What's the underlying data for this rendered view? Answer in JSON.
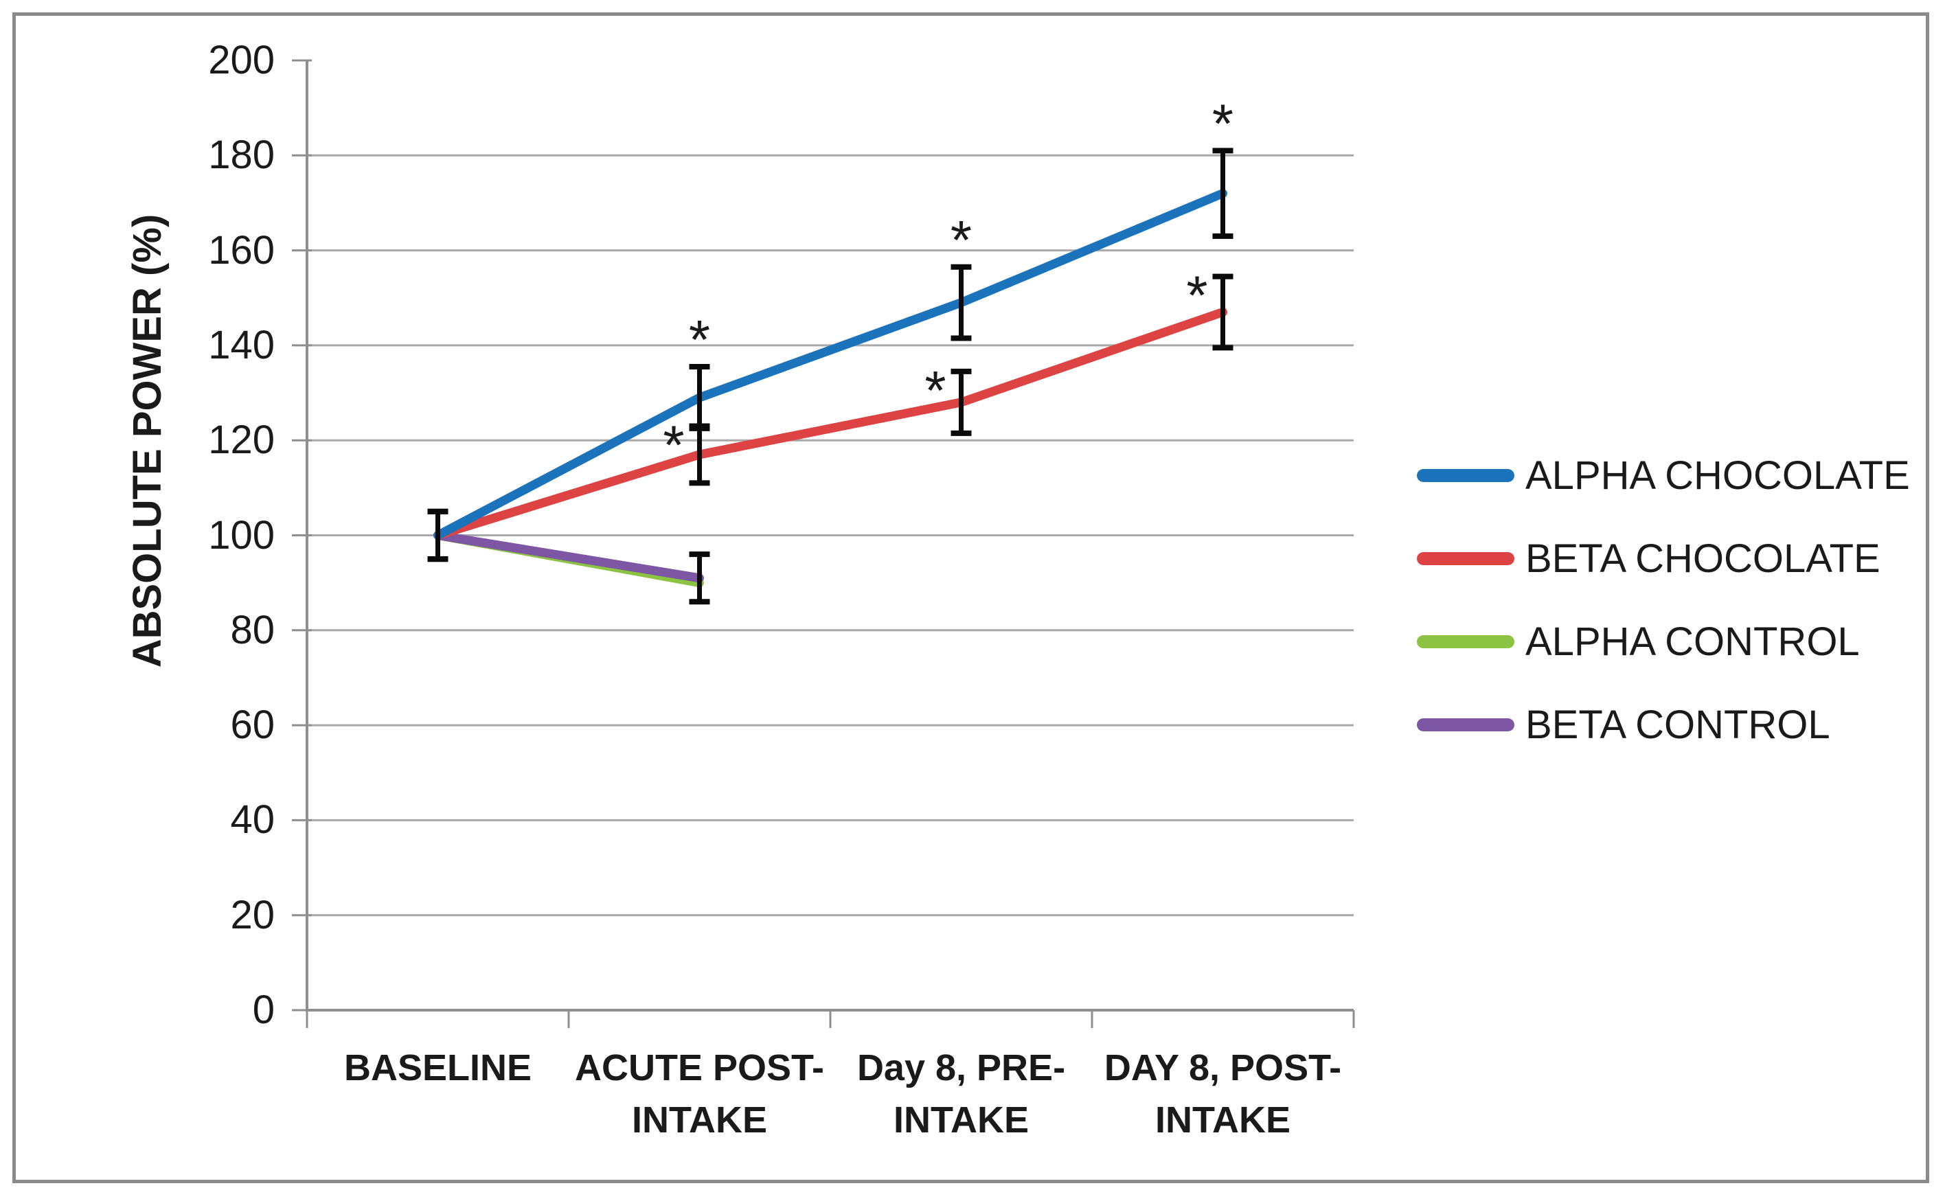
{
  "chart_data": {
    "type": "line",
    "title": "",
    "xlabel": "",
    "ylabel": "ABSOLUTE POWER (%)",
    "categories": [
      "BASELINE",
      "ACUTE POST-INTAKE",
      "Day 8, PRE-INTAKE",
      "DAY 8, POST-INTAKE"
    ],
    "category_lines": [
      [
        "BASELINE"
      ],
      [
        "ACUTE POST-",
        "INTAKE"
      ],
      [
        "Day 8, PRE-",
        "INTAKE"
      ],
      [
        "DAY 8, POST-",
        "INTAKE"
      ]
    ],
    "ylim": [
      0,
      200
    ],
    "ytick_step": 20,
    "y_tick_labels": [
      "0",
      "20",
      "40",
      "60",
      "80",
      "100",
      "120",
      "140",
      "160",
      "180",
      "200"
    ],
    "grid": "horizontal",
    "legend_position": "right-middle",
    "significance_marker": "*",
    "series": [
      {
        "name": "ALPHA CHOCOLATE",
        "color": "#1b74bb",
        "values": [
          100,
          129,
          149,
          172
        ],
        "errors": [
          5,
          6.5,
          7.5,
          9
        ],
        "significance": [
          null,
          "above",
          "above",
          "above"
        ]
      },
      {
        "name": "BETA CHOCOLATE",
        "color": "#dd4343",
        "values": [
          100,
          117,
          128,
          147
        ],
        "errors": [
          5,
          6,
          6.5,
          7.5
        ],
        "significance": [
          null,
          "left",
          "left",
          "left"
        ]
      },
      {
        "name": "ALPHA CONTROL",
        "color": "#8cc342",
        "values": [
          100,
          90
        ],
        "errors": [
          null,
          null
        ],
        "significance": [
          null,
          null
        ]
      },
      {
        "name": "BETA CONTROL",
        "color": "#7d57a3",
        "values": [
          100,
          91
        ],
        "errors": [
          5,
          5
        ],
        "significance": [
          null,
          null
        ]
      }
    ],
    "colors": {
      "grid": "#a9a9a9",
      "axis": "#8f8f8f",
      "error_bar": "#0a0a0a",
      "text": "#1a1a1a",
      "frame_border": "#8a8a8a"
    }
  }
}
